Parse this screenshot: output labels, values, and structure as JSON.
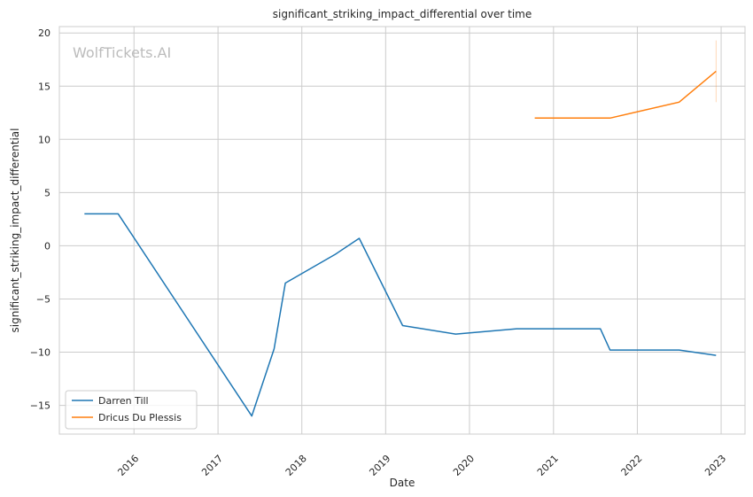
{
  "watermark": "WolfTickets.AI",
  "chart_data": {
    "type": "line",
    "title": "significant_striking_impact_differential over time",
    "xlabel": "Date",
    "ylabel": "significant_striking_impact_differential",
    "x_tick_labels": [
      "2016",
      "2017",
      "2018",
      "2019",
      "2020",
      "2021",
      "2022",
      "2023"
    ],
    "y_ticks": [
      -15,
      -10,
      -5,
      0,
      5,
      10,
      15,
      20
    ],
    "y_tick_labels": [
      "−15",
      "−10",
      "−5",
      "0",
      "5",
      "10",
      "15",
      "20"
    ],
    "xlim": [
      "2015-02-10",
      "2023-04-15"
    ],
    "ylim": [
      -17.7,
      20.6
    ],
    "grid": true,
    "legend_position": "lower-left",
    "series": [
      {
        "name": "Darren Till",
        "color": "#1f77b4",
        "points": [
          {
            "x": "2015-05-30",
            "y": 3.0
          },
          {
            "x": "2015-10-24",
            "y": 3.0
          },
          {
            "x": "2017-05-28",
            "y": -16.0
          },
          {
            "x": "2017-09-02",
            "y": -9.7
          },
          {
            "x": "2017-10-21",
            "y": -3.5
          },
          {
            "x": "2018-05-27",
            "y": -0.8
          },
          {
            "x": "2018-09-08",
            "y": 0.7
          },
          {
            "x": "2019-03-16",
            "y": -7.5
          },
          {
            "x": "2019-11-02",
            "y": -8.3
          },
          {
            "x": "2020-07-25",
            "y": -7.8
          },
          {
            "x": "2021-07-24",
            "y": -7.8
          },
          {
            "x": "2021-09-04",
            "y": -9.8
          },
          {
            "x": "2022-07-02",
            "y": -9.8
          },
          {
            "x": "2022-12-10",
            "y": -10.3
          }
        ]
      },
      {
        "name": "Dricus Du Plessis",
        "color": "#ff7f0e",
        "points": [
          {
            "x": "2020-10-11",
            "y": 12.0
          },
          {
            "x": "2021-09-04",
            "y": 12.0
          },
          {
            "x": "2022-07-02",
            "y": 13.5
          },
          {
            "x": "2022-12-10",
            "y": 16.4
          }
        ],
        "error_band": {
          "x": "2022-12-10",
          "low": 13.5,
          "high": 19.3
        }
      }
    ]
  }
}
